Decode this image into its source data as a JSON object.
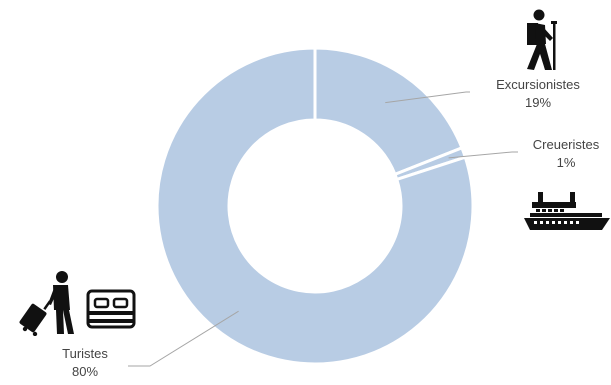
{
  "chart_data": {
    "type": "pie",
    "donut": true,
    "legend": "none",
    "slice_color": "#b8cce4",
    "separator_color": "#ffffff",
    "leader_color": "#a6a6a6",
    "text_color": "#444444",
    "slices": [
      {
        "label": "Excursionistes",
        "value": 19,
        "value_label": "19%"
      },
      {
        "label": "Creueristes",
        "value": 1,
        "value_label": "1%"
      },
      {
        "label": "Turistes",
        "value": 80,
        "value_label": "80%"
      }
    ]
  },
  "icons": {
    "excursionistes": "hiker-icon",
    "creueristes": "cruise-ship-icon",
    "turistes": [
      "traveler-with-luggage-icon",
      "bed-icon"
    ]
  }
}
